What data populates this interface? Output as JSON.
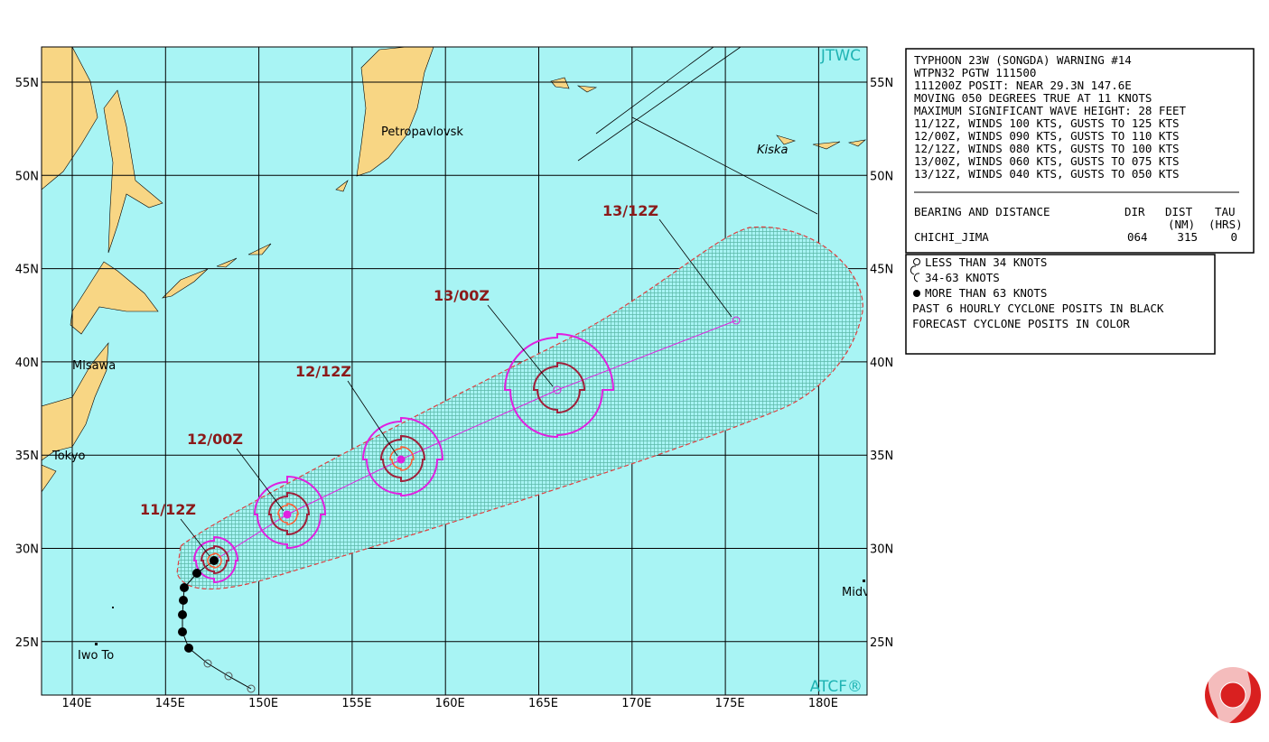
{
  "header": {
    "logo_top": "JTWC",
    "logo_bottom": "ATCF®"
  },
  "map": {
    "lat_labels": [
      "55N",
      "50N",
      "45N",
      "40N",
      "35N",
      "30N",
      "25N"
    ],
    "lon_labels": [
      "140E",
      "145E",
      "150E",
      "155E",
      "160E",
      "165E",
      "170E",
      "175E",
      "180E"
    ],
    "places": [
      "Petropavlovsk",
      "Kiska",
      "Misawa",
      "Tokyo",
      "Iwo To",
      "Midv"
    ],
    "forecast_labels": [
      "11/12Z",
      "12/00Z",
      "12/12Z",
      "13/00Z",
      "13/12Z"
    ]
  },
  "warning": {
    "lines": [
      "TYPHOON 23W (SONGDA) WARNING #14",
      "WTPN32 PGTW 111500",
      "111200Z POSIT: NEAR 29.3N 147.6E",
      "MOVING 050 DEGREES TRUE AT 11 KNOTS",
      "MAXIMUM SIGNIFICANT WAVE HEIGHT: 28 FEET",
      "11/12Z, WINDS 100 KTS, GUSTS TO 125 KTS",
      "12/00Z, WINDS 090 KTS, GUSTS TO 110 KTS",
      "12/12Z, WINDS 080 KTS, GUSTS TO 100 KTS",
      "13/00Z, WINDS 060 KTS, GUSTS TO 075 KTS",
      "13/12Z, WINDS 040 KTS, GUSTS TO 050 KTS"
    ],
    "bearing": {
      "title": "BEARING AND DISTANCE",
      "dir": "DIR",
      "dist": "DIST",
      "dist_unit": "(NM)",
      "tau": "TAU",
      "tau_unit": "(HRS)",
      "station": "CHICHI_JIMA",
      "dir_value": "064",
      "dist_value": 315,
      "tau_value": 0
    }
  },
  "legend": {
    "lines": [
      "LESS THAN 34 KNOTS",
      "34-63 KNOTS",
      "MORE THAN 63 KNOTS",
      "PAST 6 HOURLY CYCLONE POSITS IN BLACK",
      "FORECAST CYCLONE POSITS IN COLOR"
    ]
  }
}
